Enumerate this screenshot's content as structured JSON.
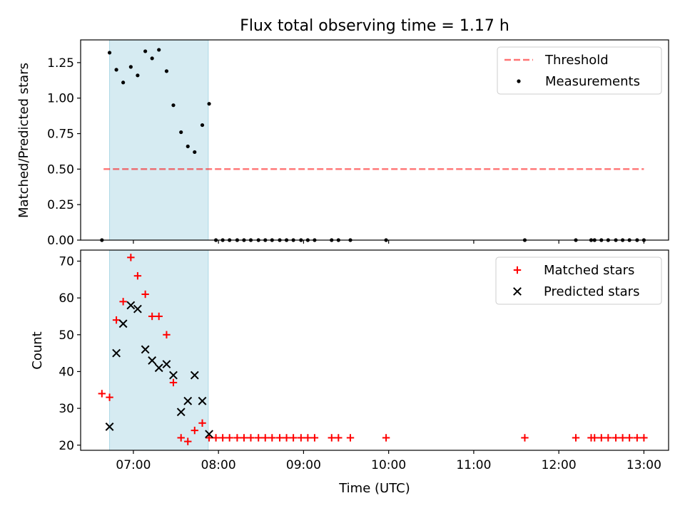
{
  "chart_data": {
    "title": "Flux total observing time = 1.17 h",
    "xlabel": "Time (UTC)",
    "x_ticks": [
      "07:00",
      "08:00",
      "09:00",
      "10:00",
      "11:00",
      "12:00",
      "13:00"
    ],
    "x_tick_hours": [
      7,
      8,
      9,
      10,
      11,
      12,
      13
    ],
    "x_range_hours": [
      6.38,
      13.29
    ],
    "shaded_interval_hours": [
      6.72,
      7.88
    ],
    "colors": {
      "shade": "#add8e6",
      "threshold": "#ff0000",
      "measurements": "#000000",
      "matched": "#ff0000",
      "predicted": "#000000"
    },
    "panels": [
      {
        "type": "scatter",
        "ylabel": "Matched/Predicted stars",
        "ylim": [
          0,
          1.41
        ],
        "y_ticks": [
          0.0,
          0.25,
          0.5,
          0.75,
          1.0,
          1.25
        ],
        "y_tick_labels": [
          "0.00",
          "0.25",
          "0.50",
          "0.75",
          "1.00",
          "1.25"
        ],
        "legend_position": "upper right",
        "legend": [
          "Threshold",
          "Measurements"
        ],
        "threshold": {
          "name": "Threshold",
          "y": 0.5,
          "x_from": 6.65,
          "x_to": 13.0
        },
        "series": [
          {
            "name": "Measurements",
            "marker": "dot",
            "points": [
              [
                6.63,
                0.0
              ],
              [
                6.72,
                1.32
              ],
              [
                6.8,
                1.2
              ],
              [
                6.88,
                1.11
              ],
              [
                6.97,
                1.22
              ],
              [
                7.05,
                1.16
              ],
              [
                7.14,
                1.33
              ],
              [
                7.22,
                1.28
              ],
              [
                7.3,
                1.34
              ],
              [
                7.39,
                1.19
              ],
              [
                7.47,
                0.95
              ],
              [
                7.56,
                0.76
              ],
              [
                7.64,
                0.66
              ],
              [
                7.72,
                0.62
              ],
              [
                7.81,
                0.81
              ],
              [
                7.89,
                0.96
              ],
              [
                7.97,
                0.0
              ],
              [
                8.05,
                0.0
              ],
              [
                8.13,
                0.0
              ],
              [
                8.22,
                0.0
              ],
              [
                8.3,
                0.0
              ],
              [
                8.38,
                0.0
              ],
              [
                8.47,
                0.0
              ],
              [
                8.55,
                0.0
              ],
              [
                8.63,
                0.0
              ],
              [
                8.72,
                0.0
              ],
              [
                8.8,
                0.0
              ],
              [
                8.88,
                0.0
              ],
              [
                8.97,
                0.0
              ],
              [
                9.05,
                0.0
              ],
              [
                9.13,
                0.0
              ],
              [
                9.33,
                0.0
              ],
              [
                9.41,
                0.0
              ],
              [
                9.55,
                0.0
              ],
              [
                9.97,
                0.0
              ],
              [
                11.6,
                0.0
              ],
              [
                12.2,
                0.0
              ],
              [
                12.38,
                0.0
              ],
              [
                12.42,
                0.0
              ],
              [
                12.5,
                0.0
              ],
              [
                12.58,
                0.0
              ],
              [
                12.67,
                0.0
              ],
              [
                12.75,
                0.0
              ],
              [
                12.83,
                0.0
              ],
              [
                12.92,
                0.0
              ],
              [
                13.0,
                0.0
              ]
            ]
          }
        ]
      },
      {
        "type": "scatter",
        "ylabel": "Count",
        "ylim": [
          18.6,
          73.0
        ],
        "y_ticks": [
          20,
          30,
          40,
          50,
          60,
          70
        ],
        "y_tick_labels": [
          "20",
          "30",
          "40",
          "50",
          "60",
          "70"
        ],
        "legend_position": "upper right",
        "legend": [
          "Matched stars",
          "Predicted stars"
        ],
        "series": [
          {
            "name": "Matched stars",
            "marker": "plus",
            "points": [
              [
                6.63,
                34
              ],
              [
                6.72,
                33
              ],
              [
                6.8,
                54
              ],
              [
                6.88,
                59
              ],
              [
                6.97,
                71
              ],
              [
                7.05,
                66
              ],
              [
                7.14,
                61
              ],
              [
                7.22,
                55
              ],
              [
                7.3,
                55
              ],
              [
                7.39,
                50
              ],
              [
                7.47,
                37
              ],
              [
                7.56,
                22
              ],
              [
                7.64,
                21
              ],
              [
                7.72,
                24
              ],
              [
                7.81,
                26
              ],
              [
                7.89,
                22
              ],
              [
                7.97,
                22
              ],
              [
                8.05,
                22
              ],
              [
                8.13,
                22
              ],
              [
                8.22,
                22
              ],
              [
                8.3,
                22
              ],
              [
                8.38,
                22
              ],
              [
                8.47,
                22
              ],
              [
                8.55,
                22
              ],
              [
                8.63,
                22
              ],
              [
                8.72,
                22
              ],
              [
                8.8,
                22
              ],
              [
                8.88,
                22
              ],
              [
                8.97,
                22
              ],
              [
                9.05,
                22
              ],
              [
                9.13,
                22
              ],
              [
                9.33,
                22
              ],
              [
                9.41,
                22
              ],
              [
                9.55,
                22
              ],
              [
                9.97,
                22
              ],
              [
                11.6,
                22
              ],
              [
                12.2,
                22
              ],
              [
                12.38,
                22
              ],
              [
                12.42,
                22
              ],
              [
                12.5,
                22
              ],
              [
                12.58,
                22
              ],
              [
                12.67,
                22
              ],
              [
                12.75,
                22
              ],
              [
                12.83,
                22
              ],
              [
                12.92,
                22
              ],
              [
                13.0,
                22
              ]
            ]
          },
          {
            "name": "Predicted stars",
            "marker": "x",
            "points": [
              [
                6.72,
                25
              ],
              [
                6.8,
                45
              ],
              [
                6.88,
                53
              ],
              [
                6.97,
                58
              ],
              [
                7.05,
                57
              ],
              [
                7.14,
                46
              ],
              [
                7.22,
                43
              ],
              [
                7.3,
                41
              ],
              [
                7.39,
                42
              ],
              [
                7.47,
                39
              ],
              [
                7.56,
                29
              ],
              [
                7.64,
                32
              ],
              [
                7.72,
                39
              ],
              [
                7.81,
                32
              ],
              [
                7.89,
                23
              ]
            ]
          }
        ]
      }
    ]
  }
}
